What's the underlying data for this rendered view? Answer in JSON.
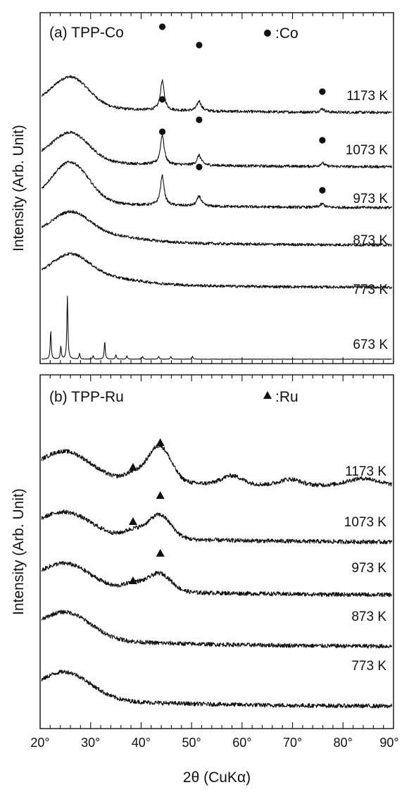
{
  "chart_data": [
    {
      "type": "line",
      "panel_label": "(a) TPP-Co",
      "legend": {
        "symbol": "circle",
        "label": ":Co",
        "placement": "top-right"
      },
      "ylabel": "Intensity (Arb. Unit)",
      "xlim": [
        20,
        90
      ],
      "x_ticks": [
        20,
        30,
        40,
        50,
        60,
        70,
        80,
        90
      ],
      "series": [
        {
          "name": "1173 K",
          "broad_peak_x": 26,
          "sharp_peaks_x": [
            44.2,
            51.5,
            75.9
          ],
          "marker_x": [
            44.2,
            51.5,
            75.9
          ]
        },
        {
          "name": "1073 K",
          "broad_peak_x": 26,
          "sharp_peaks_x": [
            44.2,
            51.5,
            75.9
          ],
          "marker_x": [
            44.2,
            51.5,
            75.9
          ]
        },
        {
          "name": "973 K",
          "broad_peak_x": 26,
          "sharp_peaks_x": [
            44.2,
            51.5,
            75.9
          ],
          "marker_x": [
            44.2,
            51.5,
            75.9
          ]
        },
        {
          "name": "873 K",
          "broad_peak_x": 26,
          "sharp_peaks_x": [],
          "marker_x": []
        },
        {
          "name": "773 K",
          "broad_peak_x": 26,
          "sharp_peaks_x": [],
          "marker_x": []
        },
        {
          "name": "673 K",
          "broad_peak_x": null,
          "sharp_peaks_x": [
            22.1,
            24.1,
            25.4,
            27.8,
            30.5,
            32.8,
            35.0,
            37.2,
            40.3,
            43.5,
            45.9,
            50.2
          ],
          "marker_x": []
        }
      ]
    },
    {
      "type": "line",
      "panel_label": "(b) TPP-Ru",
      "legend": {
        "symbol": "triangle",
        "label": ":Ru",
        "placement": "top-right"
      },
      "ylabel": "Intensity (Arb. Unit)",
      "xlabel": "2θ (CuKα)",
      "xlim": [
        20,
        90
      ],
      "x_ticks": [
        20,
        30,
        40,
        50,
        60,
        70,
        80,
        90
      ],
      "x_tick_labels": [
        "20°",
        "30°",
        "40°",
        "50°",
        "60°",
        "70°",
        "80°",
        "90°"
      ],
      "series": [
        {
          "name": "1173 K",
          "broad_peak_x": 25,
          "ru_peaks_x": [
            38.4,
            43.8
          ],
          "marker_x": [
            38.4,
            43.8
          ]
        },
        {
          "name": "1073 K",
          "broad_peak_x": 25,
          "ru_peaks_x": [
            38.4,
            43.8
          ],
          "marker_x": [
            38.4,
            43.8
          ]
        },
        {
          "name": "973 K",
          "broad_peak_x": 25,
          "ru_peaks_x": [
            38.4,
            43.8
          ],
          "marker_x": [
            38.4,
            43.8
          ]
        },
        {
          "name": "873 K",
          "broad_peak_x": 25,
          "ru_peaks_x": [],
          "marker_x": []
        },
        {
          "name": "773 K",
          "broad_peak_x": 25,
          "ru_peaks_x": [],
          "marker_x": []
        }
      ]
    }
  ]
}
